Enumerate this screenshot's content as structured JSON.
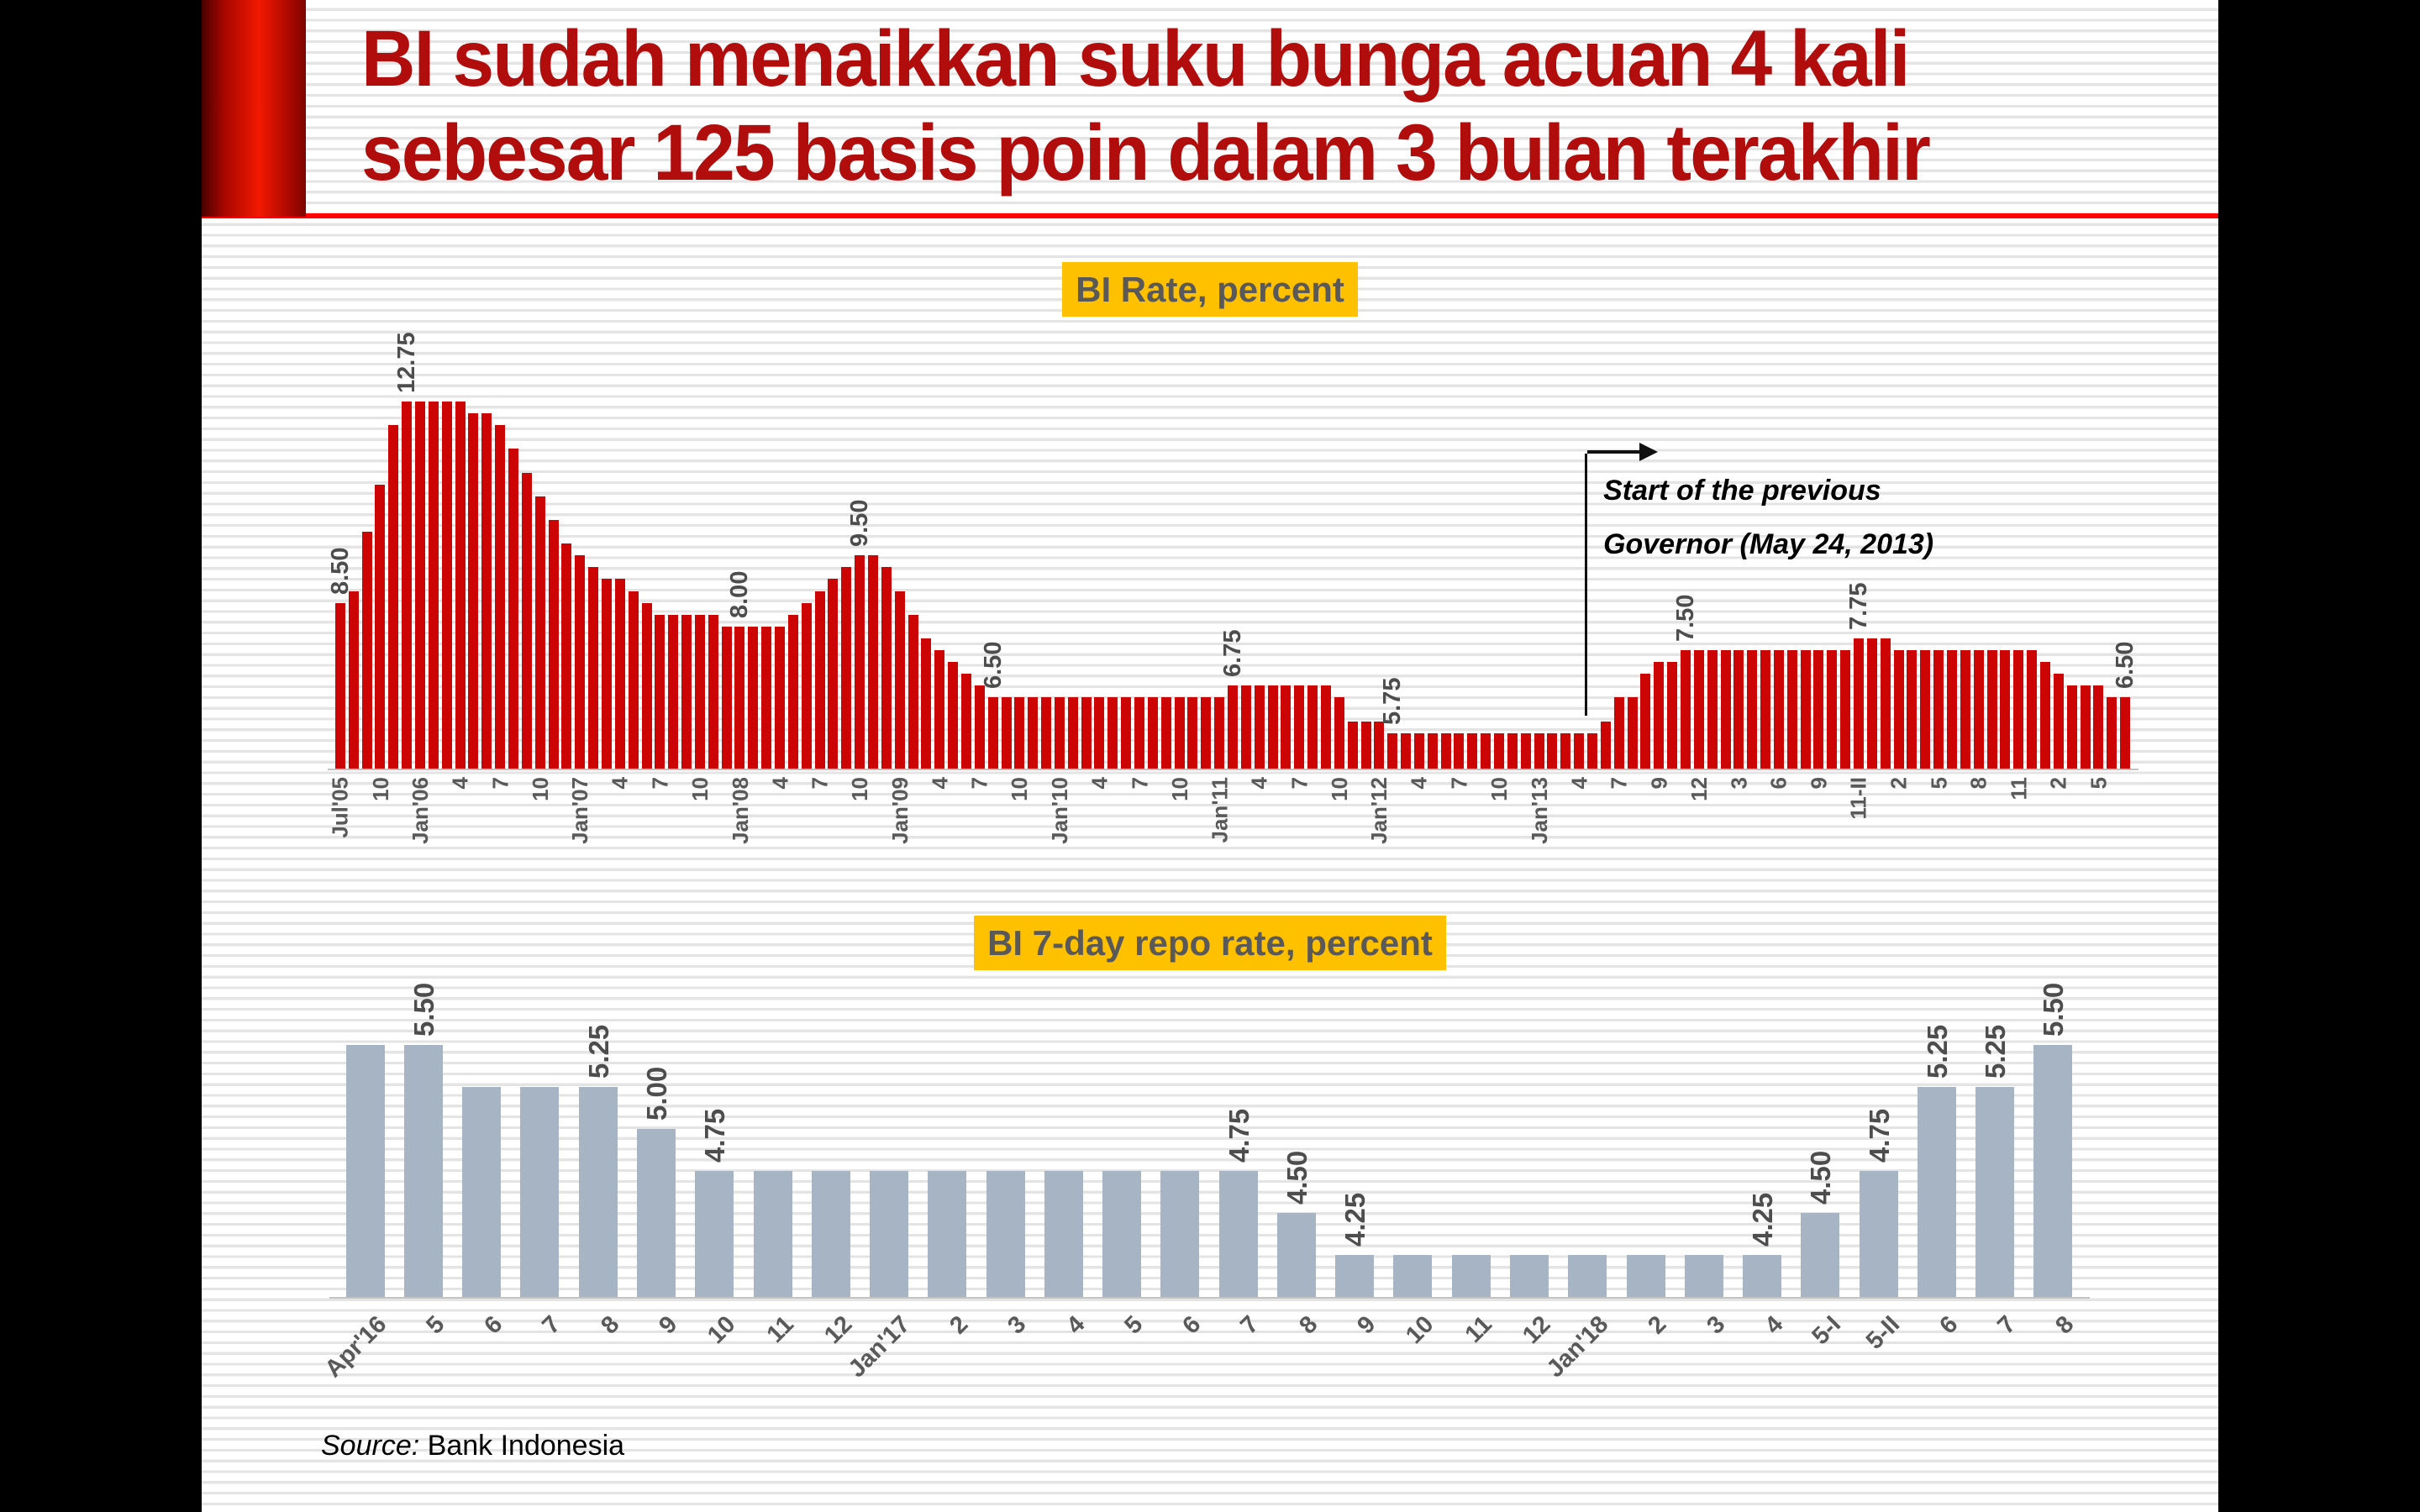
{
  "slide": {
    "title_line1": "BI sudah menaikkan suku bunga acuan 4 kali",
    "title_line2": "sebesar 125 basis poin dalam 3 bulan terakhir",
    "source_label": "Source:",
    "source_value": "Bank Indonesia"
  },
  "colors": {
    "title_red": "#B20D0D",
    "rule_red": "#FE0100",
    "bi_rate_bar": "#CC0404",
    "repo_rate_bar": "#A6B4C3",
    "badge_background": "#FFC000",
    "badge_text": "#595959",
    "axis_label_gray": "#595959",
    "value_label_gray": "#4D4D4D"
  },
  "chart_data": [
    {
      "type": "bar",
      "title": "BI Rate, percent",
      "ylabel": "percent",
      "ylim": [
        5,
        13
      ],
      "grid": false,
      "legend": "none",
      "bar_color": "#CC0404",
      "values": [
        8.5,
        8.75,
        10,
        11,
        12.25,
        12.75,
        12.75,
        12.75,
        12.75,
        12.75,
        12.5,
        12.5,
        12.25,
        11.75,
        11.25,
        10.75,
        10.25,
        9.75,
        9.5,
        9.25,
        9,
        9,
        8.75,
        8.5,
        8.25,
        8.25,
        8.25,
        8.25,
        8.25,
        8,
        8,
        8,
        8,
        8,
        8.25,
        8.5,
        8.75,
        9,
        9.25,
        9.5,
        9.5,
        9.25,
        8.75,
        8.25,
        7.75,
        7.5,
        7.25,
        7,
        6.75,
        6.5,
        6.5,
        6.5,
        6.5,
        6.5,
        6.5,
        6.5,
        6.5,
        6.5,
        6.5,
        6.5,
        6.5,
        6.5,
        6.5,
        6.5,
        6.5,
        6.5,
        6.5,
        6.75,
        6.75,
        6.75,
        6.75,
        6.75,
        6.75,
        6.75,
        6.75,
        6.5,
        6,
        6,
        6,
        5.75,
        5.75,
        5.75,
        5.75,
        5.75,
        5.75,
        5.75,
        5.75,
        5.75,
        5.75,
        5.75,
        5.75,
        5.75,
        5.75,
        5.75,
        5.75,
        6,
        6.5,
        6.5,
        7,
        7.25,
        7.25,
        7.5,
        7.5,
        7.5,
        7.5,
        7.5,
        7.5,
        7.5,
        7.5,
        7.5,
        7.5,
        7.5,
        7.5,
        7.5,
        7.75,
        7.75,
        7.75,
        7.5,
        7.5,
        7.5,
        7.5,
        7.5,
        7.5,
        7.5,
        7.5,
        7.5,
        7.5,
        7.5,
        7.25,
        7,
        6.75,
        6.75,
        6.75,
        6.5,
        6.5
      ],
      "tick_labels": [
        {
          "i": 0,
          "t": "Jul'05"
        },
        {
          "i": 3,
          "t": "10"
        },
        {
          "i": 6,
          "t": "Jan'06"
        },
        {
          "i": 9,
          "t": "4"
        },
        {
          "i": 12,
          "t": "7"
        },
        {
          "i": 15,
          "t": "10"
        },
        {
          "i": 18,
          "t": "Jan'07"
        },
        {
          "i": 21,
          "t": "4"
        },
        {
          "i": 24,
          "t": "7"
        },
        {
          "i": 27,
          "t": "10"
        },
        {
          "i": 30,
          "t": "Jan'08"
        },
        {
          "i": 33,
          "t": "4"
        },
        {
          "i": 36,
          "t": "7"
        },
        {
          "i": 39,
          "t": "10"
        },
        {
          "i": 42,
          "t": "Jan'09"
        },
        {
          "i": 45,
          "t": "4"
        },
        {
          "i": 48,
          "t": "7"
        },
        {
          "i": 51,
          "t": "10"
        },
        {
          "i": 54,
          "t": "Jan'10"
        },
        {
          "i": 57,
          "t": "4"
        },
        {
          "i": 60,
          "t": "7"
        },
        {
          "i": 63,
          "t": "10"
        },
        {
          "i": 66,
          "t": "Jan'11"
        },
        {
          "i": 69,
          "t": "4"
        },
        {
          "i": 72,
          "t": "7"
        },
        {
          "i": 75,
          "t": "10"
        },
        {
          "i": 78,
          "t": "Jan'12"
        },
        {
          "i": 81,
          "t": "4"
        },
        {
          "i": 84,
          "t": "7"
        },
        {
          "i": 87,
          "t": "10"
        },
        {
          "i": 90,
          "t": "Jan'13"
        },
        {
          "i": 93,
          "t": "4"
        },
        {
          "i": 96,
          "t": "7"
        },
        {
          "i": 99,
          "t": "9"
        },
        {
          "i": 102,
          "t": "12"
        },
        {
          "i": 105,
          "t": "3"
        },
        {
          "i": 108,
          "t": "6"
        },
        {
          "i": 111,
          "t": "9"
        },
        {
          "i": 114,
          "t": "11-II"
        },
        {
          "i": 117,
          "t": "2"
        },
        {
          "i": 120,
          "t": "5"
        },
        {
          "i": 123,
          "t": "8"
        },
        {
          "i": 126,
          "t": "11"
        },
        {
          "i": 129,
          "t": "2"
        },
        {
          "i": 132,
          "t": "5"
        }
      ],
      "value_labels": [
        {
          "i": 0,
          "t": "8.50"
        },
        {
          "i": 5,
          "t": "12.75"
        },
        {
          "i": 30,
          "t": "8.00"
        },
        {
          "i": 39,
          "t": "9.50"
        },
        {
          "i": 49,
          "t": "6.50"
        },
        {
          "i": 67,
          "t": "6.75"
        },
        {
          "i": 79,
          "t": "5.75"
        },
        {
          "i": 101,
          "t": "7.50"
        },
        {
          "i": 114,
          "t": "7.75"
        },
        {
          "i": 134,
          "t": "6.50"
        }
      ],
      "annotation": {
        "line1": "Start of the previous",
        "line2": "Governor (May 24, 2013)",
        "at_index": 94
      }
    },
    {
      "type": "bar",
      "title": "BI 7-day repo rate, percent",
      "ylabel": "percent",
      "ylim": [
        4,
        6
      ],
      "grid": false,
      "legend": "none",
      "bar_color": "#A6B4C3",
      "categories": [
        "Apr'16",
        "5",
        "6",
        "7",
        "8",
        "9",
        "10",
        "11",
        "12",
        "Jan'17",
        "2",
        "3",
        "4",
        "5",
        "6",
        "7",
        "8",
        "9",
        "10",
        "11",
        "12",
        "Jan'18",
        "2",
        "3",
        "4",
        "5-I",
        "5-II",
        "6",
        "7",
        "8"
      ],
      "values": [
        5.5,
        5.5,
        5.25,
        5.25,
        5.25,
        5,
        4.75,
        4.75,
        4.75,
        4.75,
        4.75,
        4.75,
        4.75,
        4.75,
        4.75,
        4.75,
        4.5,
        4.25,
        4.25,
        4.25,
        4.25,
        4.25,
        4.25,
        4.25,
        4.25,
        4.5,
        4.75,
        5.25,
        5.25,
        5.5
      ],
      "value_labels": [
        {
          "i": 1,
          "t": "5.50"
        },
        {
          "i": 4,
          "t": "5.25"
        },
        {
          "i": 5,
          "t": "5.00"
        },
        {
          "i": 6,
          "t": "4.75"
        },
        {
          "i": 15,
          "t": "4.75"
        },
        {
          "i": 16,
          "t": "4.50"
        },
        {
          "i": 17,
          "t": "4.25"
        },
        {
          "i": 24,
          "t": "4.25"
        },
        {
          "i": 25,
          "t": "4.50"
        },
        {
          "i": 26,
          "t": "4.75"
        },
        {
          "i": 27,
          "t": "5.25"
        },
        {
          "i": 28,
          "t": "5.25"
        },
        {
          "i": 29,
          "t": "5.50"
        }
      ]
    }
  ]
}
